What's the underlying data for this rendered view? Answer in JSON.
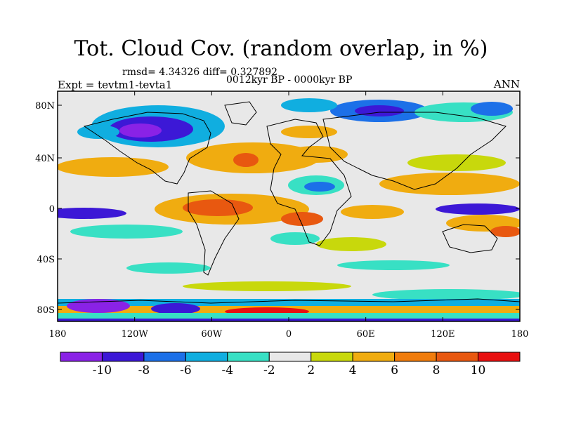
{
  "header": {
    "title": "Tot. Cloud Cov. (random overlap, in %)",
    "stats": "rmsd= 4.34326  diff= 0.327892",
    "expt": "Expt = tevtm1-tevta1",
    "period": "0012kyr BP - 0000kyr BP",
    "season": "ANN"
  },
  "axes": {
    "y_ticks": [
      "80N",
      "40N",
      "0",
      "40S",
      "80S"
    ],
    "x_ticks": [
      "180",
      "120W",
      "60W",
      "0",
      "60E",
      "120E",
      "180"
    ]
  },
  "colorbar": {
    "labels": [
      "-10",
      "-8",
      "-6",
      "-4",
      "-2",
      "2",
      "4",
      "6",
      "8",
      "10"
    ],
    "colors": [
      "#8a22e6",
      "#3c18d6",
      "#1c70e8",
      "#10aee0",
      "#38e0c4",
      "#e8e8e8",
      "#c8d80c",
      "#f0ac10",
      "#f07c0c",
      "#e85810",
      "#e81010"
    ]
  },
  "palette": {
    "background": "#e8e8e8",
    "coast": "#000000"
  }
}
